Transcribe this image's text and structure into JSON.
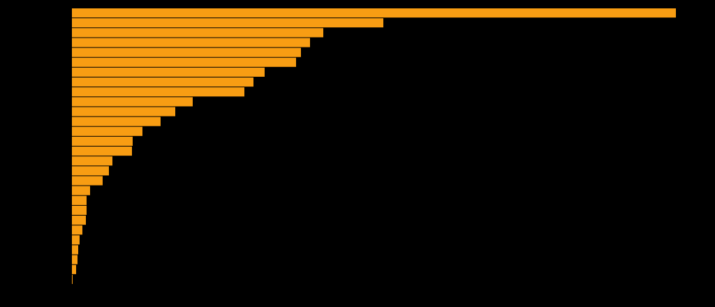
{
  "chart_data": {
    "type": "bar",
    "orientation": "horizontal",
    "categories": [
      null,
      null,
      null,
      null,
      null,
      null,
      null,
      null,
      null,
      null,
      null,
      null,
      null,
      null,
      null,
      null,
      null,
      null,
      null,
      null,
      null,
      null,
      null,
      null,
      null,
      null,
      null,
      null
    ],
    "values": [
      865,
      446,
      360,
      341,
      328,
      321,
      276,
      260,
      247,
      173,
      148,
      127,
      101,
      87,
      86,
      58,
      53,
      44,
      26,
      21,
      21,
      20,
      15,
      11,
      9,
      8,
      6,
      1
    ],
    "color": "#f89d13",
    "background": "#000000",
    "xlim": [
      0,
      865
    ]
  }
}
